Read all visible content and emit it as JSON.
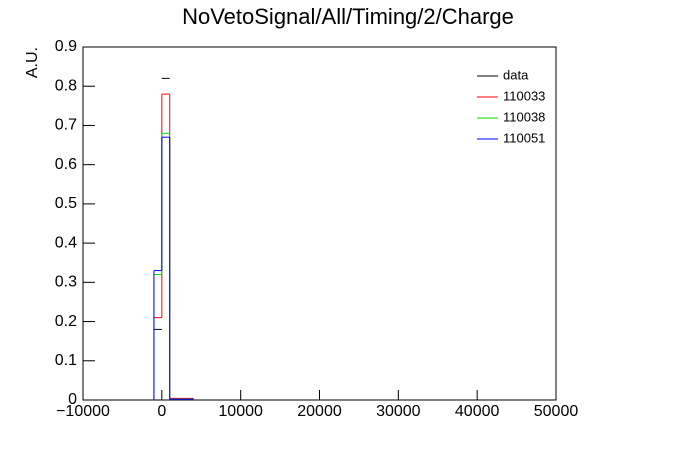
{
  "chart_data": {
    "type": "histogram",
    "title": "NoVetoSignal/All/Timing/2/Charge",
    "y_label": "A.U.",
    "bins": [
      -1000,
      0,
      1000,
      4000
    ],
    "series": [
      {
        "name": "data",
        "color": "#000000",
        "style": "marker",
        "values": [
          0.18,
          0.82,
          0
        ]
      },
      {
        "name": "110033",
        "color": "#ff0000",
        "style": "step",
        "values": [
          0.21,
          0.78,
          0.004
        ]
      },
      {
        "name": "110038",
        "color": "#00dd00",
        "style": "step",
        "values": [
          0.32,
          0.68,
          0.002
        ]
      },
      {
        "name": "110051",
        "color": "#0000ff",
        "style": "step",
        "values": [
          0.33,
          0.67,
          0.002
        ]
      }
    ],
    "xlim": [
      -10000,
      50000
    ],
    "xticks": [
      {
        "value": -10000,
        "label": "−10000"
      },
      0,
      10000,
      20000,
      30000,
      40000,
      50000
    ],
    "ylim": [
      0,
      0.9
    ],
    "yticks": [
      0,
      0.1,
      0.2,
      0.3,
      0.4,
      0.5,
      0.6,
      0.7,
      0.8,
      0.9
    ],
    "legend": "top-right"
  }
}
